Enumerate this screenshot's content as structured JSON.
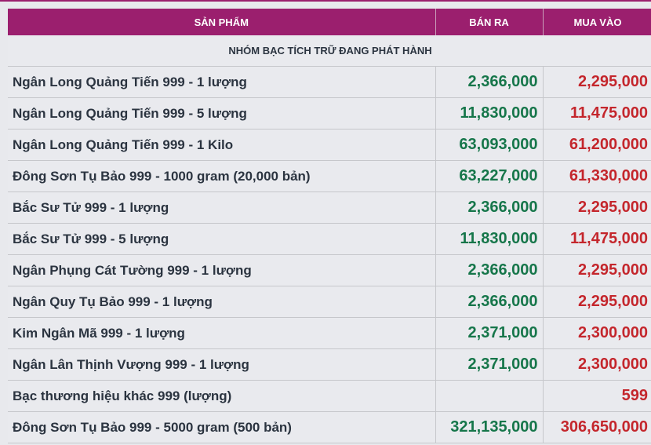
{
  "table": {
    "header": [
      "SẢN PHẨM",
      "BÁN RA",
      "MUA VÀO"
    ],
    "group": "NHÓM BẠC TÍCH TRỮ ĐANG PHÁT HÀNH",
    "rows": [
      [
        "Ngân Long Quảng Tiến 999 - 1 lượng",
        "2,366,000",
        "2,295,000"
      ],
      [
        "Ngân Long Quảng Tiến 999 - 5 lượng",
        "11,830,000",
        "11,475,000"
      ],
      [
        "Ngân Long Quảng Tiến 999 - 1 Kilo",
        "63,093,000",
        "61,200,000"
      ],
      [
        "Đông Sơn Tụ Bảo 999 - 1000 gram (20,000 bản)",
        "63,227,000",
        "61,330,000"
      ],
      [
        "Bắc Sư Tử 999 - 1 lượng",
        "2,366,000",
        "2,295,000"
      ],
      [
        "Bắc Sư Tử 999 - 5 lượng",
        "11,830,000",
        "11,475,000"
      ],
      [
        "Ngân Phụng Cát Tường 999 - 1 lượng",
        "2,366,000",
        "2,295,000"
      ],
      [
        "Ngân Quy Tụ Bảo 999 - 1 lượng",
        "2,366,000",
        "2,295,000"
      ],
      [
        "Kim Ngân Mã 999 - 1 lượng",
        "2,371,000",
        "2,300,000"
      ],
      [
        "Ngân Lân Thịnh Vượng 999 - 1 lượng",
        "2,371,000",
        "2,300,000"
      ],
      [
        "Bạc thương hiệu khác 999 (lượng)",
        null,
        "599"
      ],
      [
        "Đông Sơn Tụ Bảo 999 - 5000 gram (500 bản)",
        "321,135,000",
        "306,650,000"
      ]
    ]
  }
}
